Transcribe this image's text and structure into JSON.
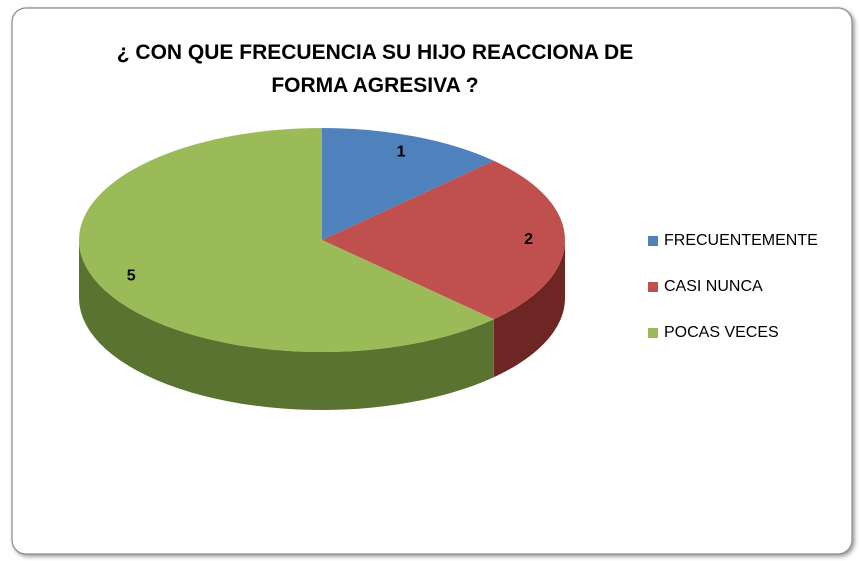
{
  "chart_data": {
    "type": "pie3d",
    "title": "¿ CON QUE FRECUENCIA SU HIJO REACCIONA DE FORMA AGRESIVA ?",
    "categories": [
      "FRECUENTEMENTE",
      "CASI NUNCA",
      "POCAS VECES"
    ],
    "values": [
      1,
      2,
      5
    ],
    "colors": [
      "#4f81bd",
      "#c0504d",
      "#9bbb59"
    ],
    "side_colors": [
      "#2c4d74",
      "#6e2624",
      "#5b7330"
    ],
    "legend": "right"
  }
}
